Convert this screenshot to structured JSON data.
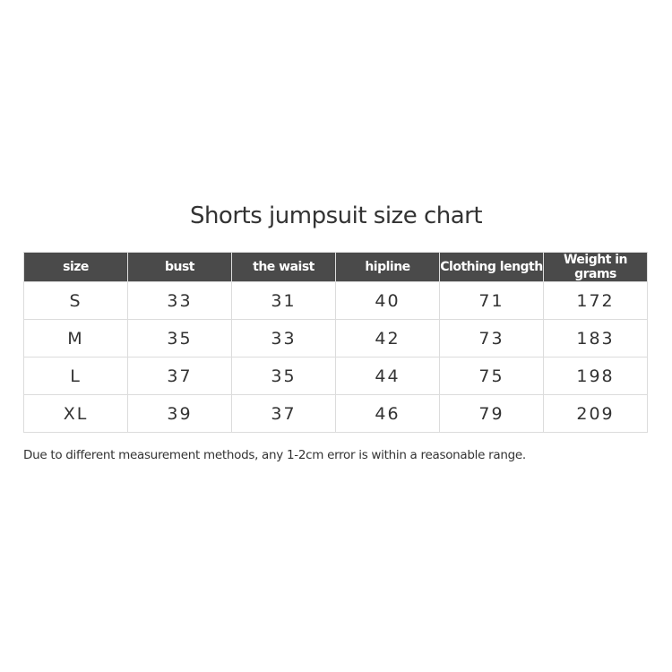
{
  "title": "Shorts jumpsuit size chart",
  "table": {
    "headers": [
      "size",
      "bust",
      "the waist",
      "hipline",
      "Clothing length",
      "Weight in grams"
    ],
    "rows": [
      [
        "S",
        "33",
        "31",
        "40",
        "71",
        "172"
      ],
      [
        "M",
        "35",
        "33",
        "42",
        "73",
        "183"
      ],
      [
        "L",
        "37",
        "35",
        "44",
        "75",
        "198"
      ],
      [
        "XL",
        "39",
        "37",
        "46",
        "79",
        "209"
      ]
    ],
    "header_color": "#4a4a4a"
  },
  "note": "Due to different measurement methods, any 1-2cm error is within a reasonable range."
}
